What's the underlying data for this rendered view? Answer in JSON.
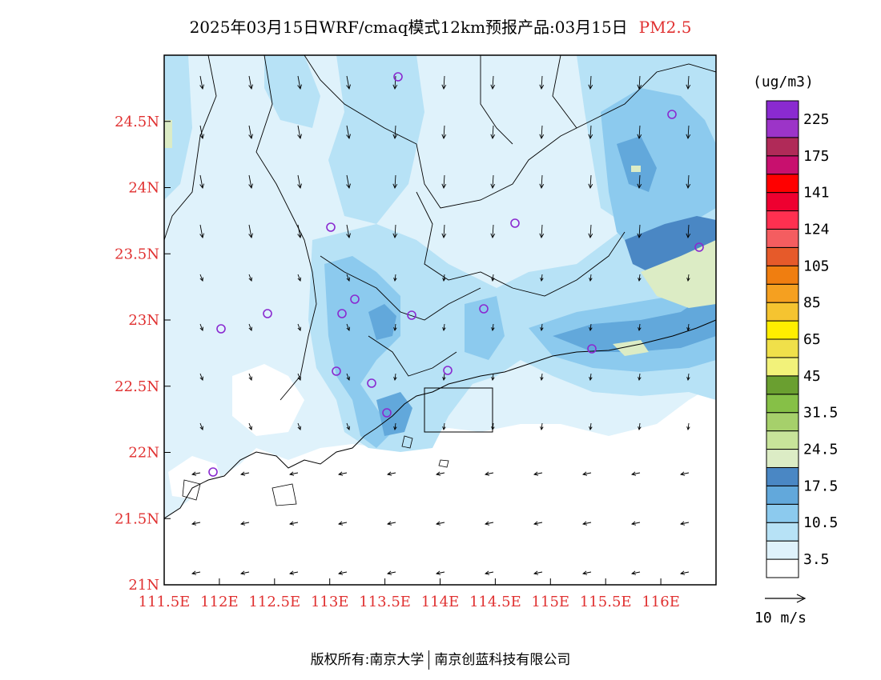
{
  "title": {
    "main": "2025年03月15日WRF/cmaq模式12km预报产品:03月15日",
    "pollutant": "PM2.5"
  },
  "map": {
    "lat_ticks": [
      "24.5N",
      "24N",
      "23.5N",
      "23N",
      "22.5N",
      "22N",
      "21.5N",
      "21N"
    ],
    "lon_ticks": [
      "111.5E",
      "112E",
      "112.5E",
      "113E",
      "113.5E",
      "114E",
      "114.5E",
      "115E",
      "115.5E",
      "116E"
    ],
    "lat_range": [
      21.0,
      25.0
    ],
    "lon_range": [
      111.5,
      116.5
    ]
  },
  "colorbar": {
    "units": "(ug/m3)",
    "colors": [
      "#ffffff",
      "#dff2fb",
      "#b7e2f6",
      "#8ccaee",
      "#62a8db",
      "#4a87c4",
      "#dcecc5",
      "#c8e49a",
      "#a6d06b",
      "#86c047",
      "#6a9f30",
      "#f2f27a",
      "#f0e04a",
      "#ffee00",
      "#f5c430",
      "#f5a020",
      "#f07e10",
      "#e65a2a",
      "#f45d60",
      "#ff3050",
      "#ee0030",
      "#ff0000",
      "#c8106e",
      "#b02a58",
      "#9c34c8",
      "#8a2ad0"
    ],
    "labels": [
      "3.5",
      "10.5",
      "17.5",
      "24.5",
      "31.5",
      "45",
      "65",
      "85",
      "105",
      "124",
      "141",
      "175",
      "225"
    ]
  },
  "wind_legend": {
    "label": "10 m/s"
  },
  "footer": {
    "left": "版权所有:南京大学",
    "right": "南京创蓝科技有限公司"
  }
}
